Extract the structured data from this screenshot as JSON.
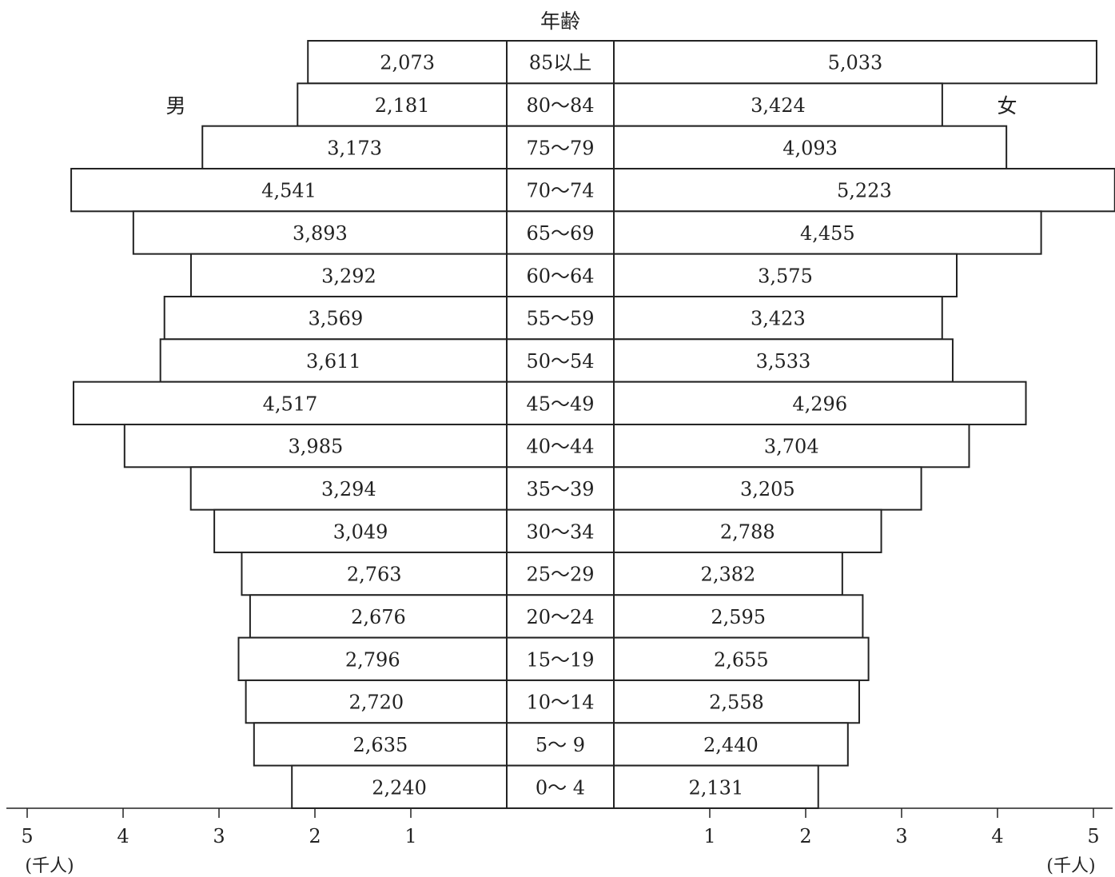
{
  "chart_data": {
    "type": "bar",
    "orientation": "horizontal",
    "layout": "population-pyramid",
    "title": "年齢",
    "male_label": "男",
    "female_label": "女",
    "unit_left": "(千人)",
    "unit_right": "(千人)",
    "xlim": [
      0,
      5
    ],
    "tick_values": [
      "5",
      "4",
      "3",
      "2",
      "1"
    ],
    "tick_values_right": [
      "1",
      "2",
      "3",
      "4",
      "5"
    ],
    "grid": false,
    "categories": [
      "85以上",
      "80〜84",
      "75〜79",
      "70〜74",
      "65〜69",
      "60〜64",
      "55〜59",
      "50〜54",
      "45〜49",
      "40〜44",
      "35〜39",
      "30〜34",
      "25〜29",
      "20〜24",
      "15〜19",
      "10〜14",
      "5〜 9",
      "0〜 4"
    ],
    "series": [
      {
        "name": "男",
        "values": [
          2.073,
          2.181,
          3.173,
          4.541,
          3.893,
          3.292,
          3.569,
          3.611,
          4.517,
          3.985,
          3.294,
          3.049,
          2.763,
          2.676,
          2.796,
          2.72,
          2.635,
          2.24
        ],
        "labels": [
          "2,073",
          "2,181",
          "3,173",
          "4,541",
          "3,893",
          "3,292",
          "3,569",
          "3,611",
          "4,517",
          "3,985",
          "3,294",
          "3,049",
          "2,763",
          "2,676",
          "2,796",
          "2,720",
          "2,635",
          "2,240"
        ]
      },
      {
        "name": "女",
        "values": [
          5.033,
          3.424,
          4.093,
          5.223,
          4.455,
          3.575,
          3.423,
          3.533,
          4.296,
          3.704,
          3.205,
          2.788,
          2.382,
          2.595,
          2.655,
          2.558,
          2.44,
          2.131
        ],
        "labels": [
          "5,033",
          "3,424",
          "4,093",
          "5,223",
          "4,455",
          "3,575",
          "3,423",
          "3,533",
          "4,296",
          "3,704",
          "3,205",
          "2,788",
          "2,382",
          "2,595",
          "2,655",
          "2,558",
          "2,440",
          "2,131"
        ]
      }
    ]
  }
}
